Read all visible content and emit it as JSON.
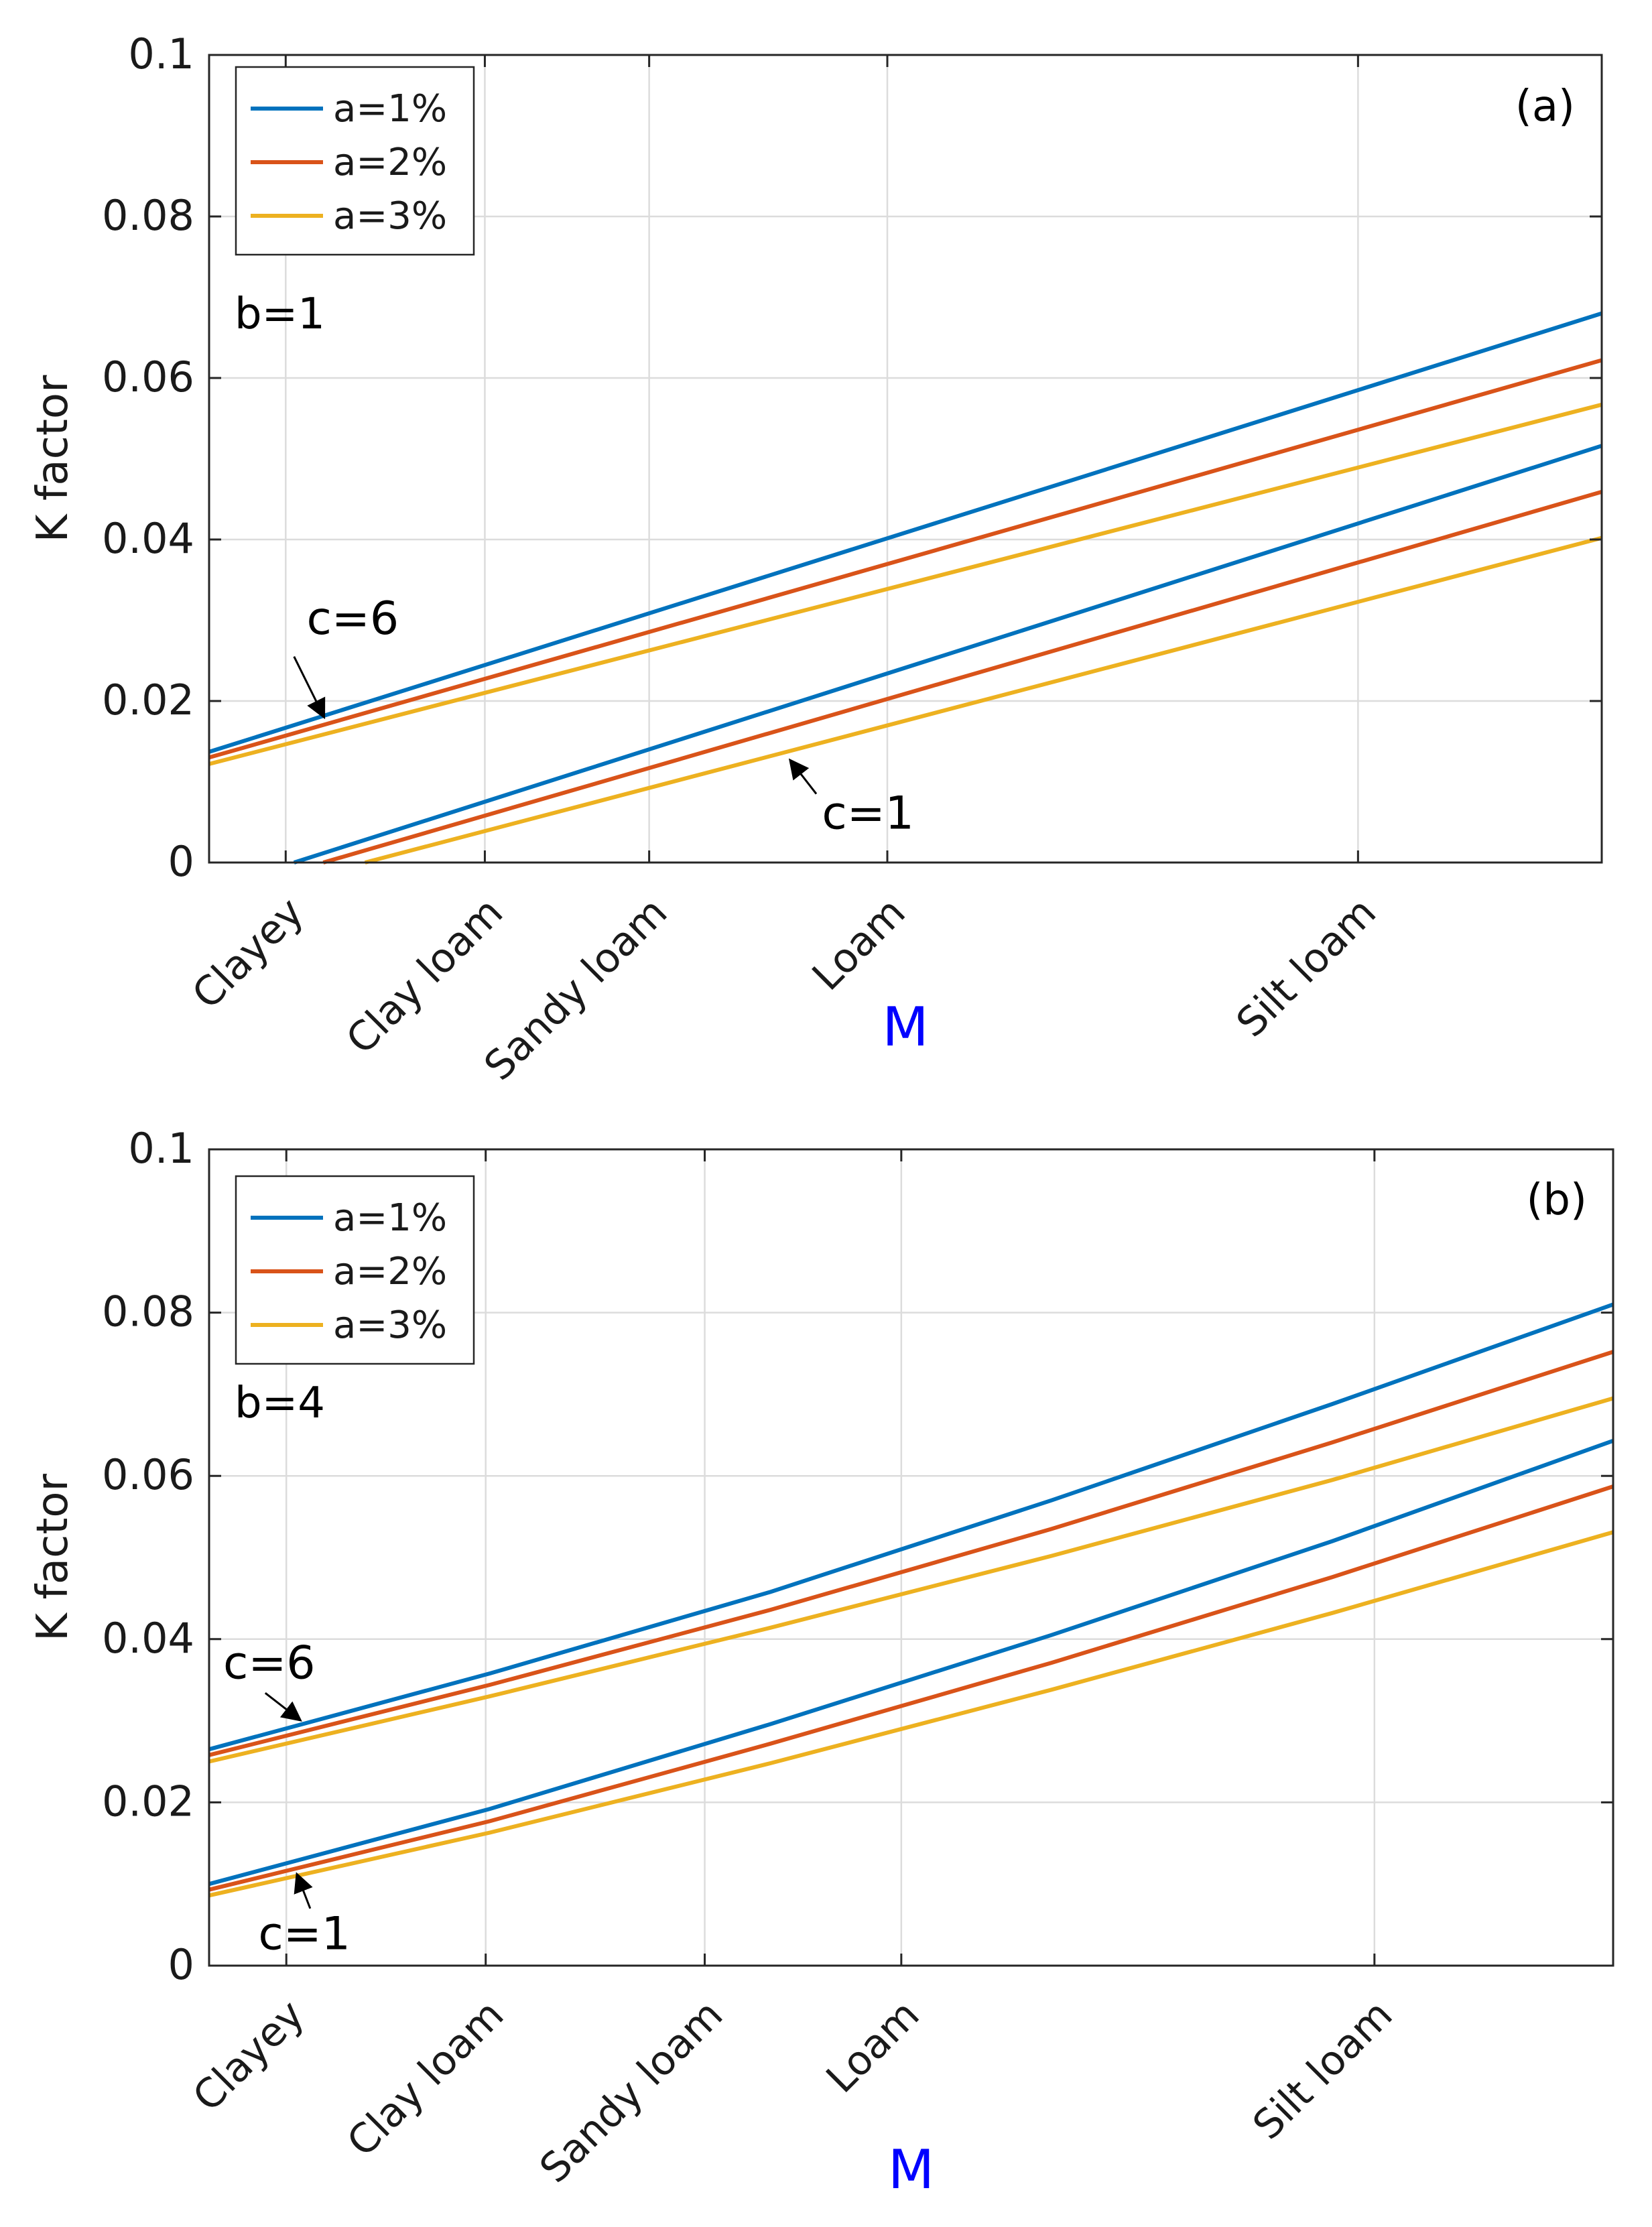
{
  "colors": {
    "a1": "#0072BD",
    "a2": "#D95319",
    "a3": "#EDB120",
    "xlabel": "#0000ff"
  },
  "chart_data": [
    {
      "type": "line",
      "panel_label": "(a)",
      "b_label": "b=1",
      "xlabel": "M",
      "ylabel": "K factor",
      "xlim": [
        0,
        1
      ],
      "ylim": [
        0,
        0.1
      ],
      "yticks": [
        0,
        0.02,
        0.04,
        0.06,
        0.08,
        0.1
      ],
      "ytick_labels": [
        "0",
        "0.02",
        "0.04",
        "0.06",
        "0.08",
        "0.1"
      ],
      "categories": [
        "Clayey",
        "Clay loam",
        "Sandy loam",
        "Loam",
        "Silt loam"
      ],
      "category_positions": [
        0.055,
        0.198,
        0.316,
        0.487,
        0.825
      ],
      "legend": [
        "a=1%",
        "a=2%",
        "a=3%"
      ],
      "series": [
        {
          "name": "a=1%",
          "c": 6,
          "x": [
            0,
            1
          ],
          "y": [
            0.0137,
            0.068
          ]
        },
        {
          "name": "a=2%",
          "c": 6,
          "x": [
            0,
            1
          ],
          "y": [
            0.013,
            0.0622
          ]
        },
        {
          "name": "a=3%",
          "c": 6,
          "x": [
            0,
            1
          ],
          "y": [
            0.0122,
            0.0567
          ]
        },
        {
          "name": "a=1%",
          "c": 1,
          "x": [
            0.061,
            1
          ],
          "y": [
            0,
            0.0516
          ]
        },
        {
          "name": "a=2%",
          "c": 1,
          "x": [
            0.082,
            1
          ],
          "y": [
            0,
            0.0459
          ]
        },
        {
          "name": "a=3%",
          "c": 1,
          "x": [
            0.112,
            1
          ],
          "y": [
            0,
            0.0402
          ]
        }
      ],
      "annotations": [
        {
          "text": "c=6",
          "text_at": [
            0.07,
            0.0283
          ],
          "arrow_from": [
            0.061,
            0.0255
          ],
          "arrow_to": [
            0.082,
            0.0182
          ]
        },
        {
          "text": "c=1",
          "text_at": [
            0.44,
            0.0042
          ],
          "arrow_from": [
            0.436,
            0.0085
          ],
          "arrow_to": [
            0.418,
            0.0125
          ]
        }
      ]
    },
    {
      "type": "line",
      "panel_label": "(b)",
      "b_label": "b=4",
      "xlabel": "M",
      "ylabel": "K factor",
      "xlim": [
        0,
        1
      ],
      "ylim": [
        0,
        0.1
      ],
      "yticks": [
        0,
        0.02,
        0.04,
        0.06,
        0.08,
        0.1
      ],
      "ytick_labels": [
        "0",
        "0.02",
        "0.04",
        "0.06",
        "0.08",
        "0.1"
      ],
      "categories": [
        "Clayey",
        "Clay loam",
        "Sandy loam",
        "Loam",
        "Silt loam"
      ],
      "category_positions": [
        0.055,
        0.197,
        0.353,
        0.493,
        0.83
      ],
      "legend": [
        "a=1%",
        "a=2%",
        "a=3%"
      ],
      "series": [
        {
          "name": "a=1%",
          "c": 6,
          "x": [
            0,
            0.2,
            0.4,
            0.6,
            0.8,
            1
          ],
          "y": [
            0.0265,
            0.0358,
            0.0458,
            0.057,
            0.0688,
            0.081
          ]
        },
        {
          "name": "a=2%",
          "c": 6,
          "x": [
            0,
            0.2,
            0.4,
            0.6,
            0.8,
            1
          ],
          "y": [
            0.0258,
            0.0344,
            0.0436,
            0.0535,
            0.0641,
            0.0752
          ]
        },
        {
          "name": "a=3%",
          "c": 6,
          "x": [
            0,
            0.2,
            0.4,
            0.6,
            0.8,
            1
          ],
          "y": [
            0.025,
            0.033,
            0.0414,
            0.0502,
            0.0595,
            0.0695
          ]
        },
        {
          "name": "a=1%",
          "c": 1,
          "x": [
            0,
            0.2,
            0.4,
            0.6,
            0.8,
            1
          ],
          "y": [
            0.01,
            0.0192,
            0.0296,
            0.0405,
            0.052,
            0.0643
          ]
        },
        {
          "name": "a=2%",
          "c": 1,
          "x": [
            0,
            0.2,
            0.4,
            0.6,
            0.8,
            1
          ],
          "y": [
            0.0093,
            0.0177,
            0.0272,
            0.0371,
            0.0476,
            0.0587
          ]
        },
        {
          "name": "a=3%",
          "c": 1,
          "x": [
            0,
            0.2,
            0.4,
            0.6,
            0.8,
            1
          ],
          "y": [
            0.0086,
            0.0163,
            0.0248,
            0.0338,
            0.0432,
            0.0531
          ]
        }
      ],
      "annotations": [
        {
          "text": "c=6",
          "text_at": [
            0.01,
            0.0352
          ],
          "arrow_from": [
            0.04,
            0.0334
          ],
          "arrow_to": [
            0.064,
            0.0302
          ]
        },
        {
          "text": "c=1",
          "text_at": [
            0.035,
            0.002
          ],
          "arrow_from": [
            0.072,
            0.007
          ],
          "arrow_to": [
            0.063,
            0.011
          ]
        }
      ]
    }
  ]
}
